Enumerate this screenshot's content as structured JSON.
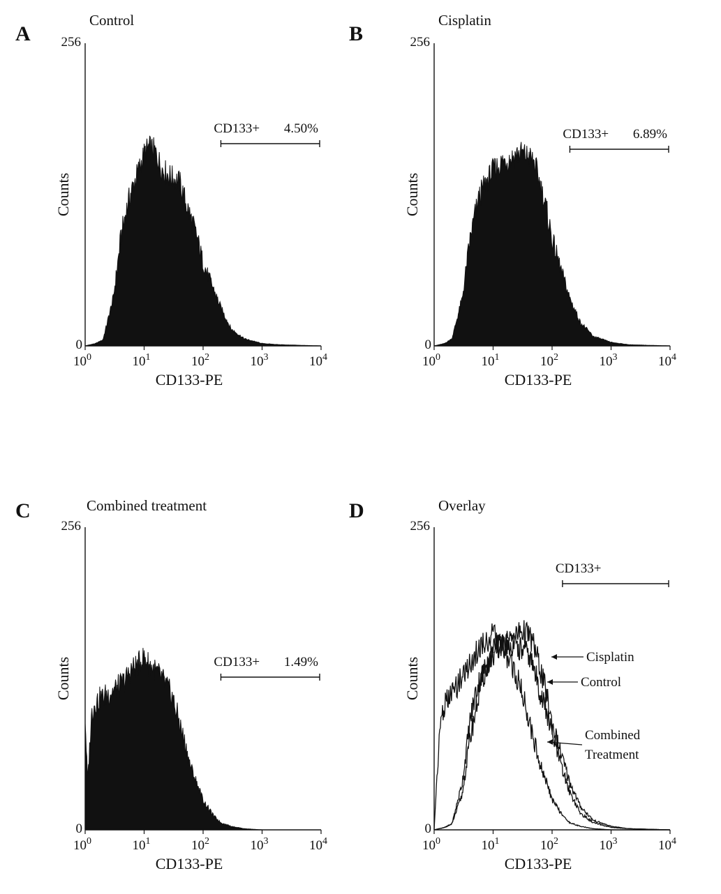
{
  "figure": {
    "panels": [
      {
        "letter": "A",
        "title": "Control"
      },
      {
        "letter": "B",
        "title": "Cisplatin"
      },
      {
        "letter": "C",
        "title": "Combined treatment"
      },
      {
        "letter": "D",
        "title": "Overlay"
      }
    ]
  },
  "chart_data": [
    {
      "type": "area",
      "panel": "A",
      "title": "Control",
      "xlabel": "CD133-PE",
      "ylabel": "Counts",
      "x_scale": "log",
      "xlim": [
        1,
        10000
      ],
      "ylim": [
        0,
        256
      ],
      "x_ticks": [
        {
          "base": "10",
          "exp": "0"
        },
        {
          "base": "10",
          "exp": "1"
        },
        {
          "base": "10",
          "exp": "2"
        },
        {
          "base": "10",
          "exp": "3"
        },
        {
          "base": "10",
          "exp": "4"
        }
      ],
      "y_ticks": [
        "0",
        "256"
      ],
      "fill_color": "#111111",
      "gate": {
        "label": "CD133+",
        "percent": "4.50%",
        "range": [
          200,
          10000
        ]
      },
      "series": [
        {
          "name": "Control",
          "x": [
            1,
            1.5,
            2,
            3,
            4,
            5,
            6,
            8,
            10,
            12,
            15,
            20,
            25,
            30,
            40,
            50,
            60,
            80,
            100,
            150,
            200,
            300,
            500,
            1000,
            2000,
            10000
          ],
          "y": [
            0,
            2,
            5,
            40,
            90,
            115,
            130,
            148,
            162,
            168,
            165,
            150,
            145,
            142,
            138,
            122,
            110,
            90,
            70,
            48,
            32,
            14,
            6,
            2,
            1,
            0
          ]
        }
      ]
    },
    {
      "type": "area",
      "panel": "B",
      "title": "Cisplatin",
      "xlabel": "CD133-PE",
      "ylabel": "Counts",
      "x_scale": "log",
      "xlim": [
        1,
        10000
      ],
      "ylim": [
        0,
        256
      ],
      "x_ticks": [
        {
          "base": "10",
          "exp": "0"
        },
        {
          "base": "10",
          "exp": "1"
        },
        {
          "base": "10",
          "exp": "2"
        },
        {
          "base": "10",
          "exp": "3"
        },
        {
          "base": "10",
          "exp": "4"
        }
      ],
      "y_ticks": [
        "0",
        "256"
      ],
      "fill_color": "#111111",
      "gate": {
        "label": "CD133+",
        "percent": "6.89%",
        "range": [
          200,
          10000
        ]
      },
      "series": [
        {
          "name": "Cisplatin",
          "x": [
            1,
            1.5,
            2,
            3,
            4,
            5,
            6,
            8,
            10,
            12,
            15,
            20,
            25,
            30,
            40,
            50,
            60,
            80,
            100,
            150,
            200,
            300,
            500,
            1000,
            2000,
            10000
          ],
          "y": [
            0,
            2,
            6,
            40,
            88,
            112,
            128,
            140,
            148,
            152,
            156,
            158,
            162,
            163,
            160,
            155,
            140,
            115,
            90,
            60,
            40,
            20,
            8,
            3,
            1,
            0
          ]
        }
      ]
    },
    {
      "type": "area",
      "panel": "C",
      "title": "Combined treatment",
      "xlabel": "CD133-PE",
      "ylabel": "Counts",
      "x_scale": "log",
      "xlim": [
        1,
        10000
      ],
      "ylim": [
        0,
        256
      ],
      "x_ticks": [
        {
          "base": "10",
          "exp": "0"
        },
        {
          "base": "10",
          "exp": "1"
        },
        {
          "base": "10",
          "exp": "2"
        },
        {
          "base": "10",
          "exp": "3"
        },
        {
          "base": "10",
          "exp": "4"
        }
      ],
      "y_ticks": [
        "0",
        "256"
      ],
      "fill_color": "#111111",
      "gate": {
        "label": "CD133+",
        "percent": "1.49%",
        "range": [
          200,
          10000
        ]
      },
      "series": [
        {
          "name": "Combined treatment",
          "x": [
            1,
            1.1,
            1.3,
            1.5,
            2,
            3,
            4,
            5,
            6,
            8,
            10,
            12,
            15,
            20,
            25,
            30,
            40,
            50,
            60,
            80,
            100,
            150,
            200,
            300,
            500,
            1000,
            10000
          ],
          "y": [
            95,
            40,
            100,
            108,
            112,
            118,
            122,
            128,
            135,
            140,
            146,
            140,
            135,
            128,
            120,
            112,
            90,
            72,
            55,
            38,
            25,
            12,
            6,
            3,
            1,
            0,
            0
          ]
        }
      ]
    },
    {
      "type": "line",
      "panel": "D",
      "title": "Overlay",
      "xlabel": "CD133-PE",
      "ylabel": "Counts",
      "x_scale": "log",
      "xlim": [
        1,
        10000
      ],
      "ylim": [
        0,
        256
      ],
      "x_ticks": [
        {
          "base": "10",
          "exp": "0"
        },
        {
          "base": "10",
          "exp": "1"
        },
        {
          "base": "10",
          "exp": "2"
        },
        {
          "base": "10",
          "exp": "3"
        },
        {
          "base": "10",
          "exp": "4"
        }
      ],
      "y_ticks": [
        "0",
        "256"
      ],
      "line_color": "#111111",
      "gate": {
        "label": "CD133+",
        "range": [
          150,
          10000
        ]
      },
      "annotations": [
        "Cisplatin",
        "Control",
        "Combined",
        "Treatment"
      ],
      "series": [
        {
          "name": "Cisplatin",
          "x": [
            1,
            1.5,
            2,
            3,
            4,
            5,
            6,
            8,
            10,
            12,
            15,
            20,
            25,
            30,
            40,
            50,
            60,
            80,
            100,
            150,
            200,
            300,
            500,
            1000,
            2000,
            10000
          ],
          "y": [
            0,
            2,
            5,
            40,
            90,
            115,
            128,
            140,
            148,
            152,
            156,
            160,
            165,
            168,
            165,
            155,
            140,
            115,
            90,
            60,
            40,
            20,
            8,
            3,
            1,
            0
          ]
        },
        {
          "name": "Control",
          "x": [
            1,
            1.5,
            2,
            3,
            4,
            5,
            6,
            8,
            10,
            12,
            15,
            20,
            25,
            30,
            40,
            50,
            60,
            80,
            100,
            150,
            200,
            300,
            500,
            1000,
            2000,
            10000
          ],
          "y": [
            0,
            2,
            5,
            30,
            75,
            100,
            120,
            140,
            150,
            155,
            160,
            158,
            155,
            152,
            148,
            135,
            120,
            100,
            80,
            50,
            32,
            14,
            6,
            2,
            1,
            0
          ]
        },
        {
          "name": "Combined Treatment",
          "x": [
            1,
            1.1,
            1.3,
            1.5,
            2,
            3,
            4,
            5,
            6,
            8,
            10,
            12,
            15,
            20,
            25,
            30,
            40,
            50,
            60,
            80,
            100,
            150,
            200,
            300,
            500,
            1000,
            10000
          ],
          "y": [
            0,
            40,
            95,
            105,
            115,
            130,
            140,
            148,
            155,
            160,
            165,
            160,
            152,
            140,
            130,
            118,
            95,
            75,
            58,
            40,
            26,
            12,
            6,
            3,
            1,
            0,
            0
          ]
        }
      ]
    }
  ]
}
